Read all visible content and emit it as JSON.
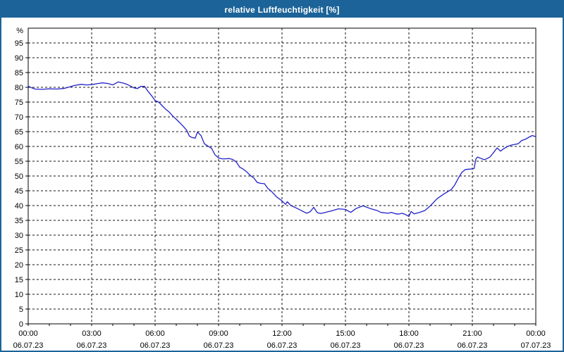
{
  "window": {
    "title": "relative Luftfeuchtigkeit [%]"
  },
  "colors": {
    "titlebar_bg": "#1b6398",
    "window_border": "#1b6398",
    "title_text": "#ffffff",
    "line": "#2121c8",
    "grid": "#111111",
    "axis": "#000000",
    "plot_bg": "#ffffff",
    "label": "#000000"
  },
  "chart_data": {
    "type": "line",
    "title": "relative Luftfeuchtigkeit [%]",
    "ylabel_unit": "%",
    "xlim_hours": [
      0,
      24
    ],
    "ylim": [
      0,
      100
    ],
    "grid": "dashed",
    "legend": "none",
    "y_ticks": [
      95,
      90,
      85,
      80,
      75,
      70,
      65,
      60,
      55,
      50,
      45,
      40,
      35,
      30,
      25,
      20,
      15,
      10,
      5,
      0
    ],
    "x_ticks": [
      {
        "time": "00:00",
        "date": "06.07.23",
        "hour": 0
      },
      {
        "time": "03:00",
        "date": "06.07.23",
        "hour": 3
      },
      {
        "time": "06:00",
        "date": "06.07.23",
        "hour": 6
      },
      {
        "time": "09:00",
        "date": "06.07.23",
        "hour": 9
      },
      {
        "time": "12:00",
        "date": "06.07.23",
        "hour": 12
      },
      {
        "time": "15:00",
        "date": "06.07.23",
        "hour": 15
      },
      {
        "time": "18:00",
        "date": "06.07.23",
        "hour": 18
      },
      {
        "time": "21:00",
        "date": "06.07.23",
        "hour": 21
      },
      {
        "time": "00:00",
        "date": "07.07.23",
        "hour": 24
      }
    ],
    "minor_x_tick_every_hours": 1,
    "series": [
      {
        "name": "relative Luftfeuchtigkeit",
        "unit": "%",
        "points": [
          [
            0.0,
            80.4
          ],
          [
            0.17,
            79.8
          ],
          [
            0.33,
            79.4
          ],
          [
            0.67,
            79.3
          ],
          [
            1.0,
            79.5
          ],
          [
            1.33,
            79.4
          ],
          [
            1.67,
            79.6
          ],
          [
            1.9,
            80.0
          ],
          [
            2.17,
            80.6
          ],
          [
            2.5,
            81.0
          ],
          [
            2.75,
            80.8
          ],
          [
            3.0,
            80.9
          ],
          [
            3.33,
            81.3
          ],
          [
            3.5,
            81.5
          ],
          [
            3.75,
            81.3
          ],
          [
            4.0,
            80.8
          ],
          [
            4.25,
            81.8
          ],
          [
            4.5,
            81.4
          ],
          [
            4.67,
            81.0
          ],
          [
            5.0,
            79.8
          ],
          [
            5.17,
            79.6
          ],
          [
            5.33,
            80.3
          ],
          [
            5.5,
            80.3
          ],
          [
            5.67,
            78.6
          ],
          [
            5.83,
            77.2
          ],
          [
            6.0,
            75.5
          ],
          [
            6.17,
            75.0
          ],
          [
            6.33,
            73.8
          ],
          [
            6.5,
            72.6
          ],
          [
            6.67,
            71.6
          ],
          [
            6.83,
            70.3
          ],
          [
            7.0,
            69.2
          ],
          [
            7.17,
            68.0
          ],
          [
            7.33,
            66.8
          ],
          [
            7.5,
            65.4
          ],
          [
            7.62,
            63.5
          ],
          [
            7.75,
            63.0
          ],
          [
            7.9,
            62.8
          ],
          [
            8.0,
            64.8
          ],
          [
            8.1,
            64.2
          ],
          [
            8.17,
            63.7
          ],
          [
            8.33,
            60.9
          ],
          [
            8.5,
            60.1
          ],
          [
            8.67,
            59.4
          ],
          [
            8.83,
            57.2
          ],
          [
            9.0,
            56.1
          ],
          [
            9.17,
            55.8
          ],
          [
            9.33,
            55.8
          ],
          [
            9.5,
            55.9
          ],
          [
            9.67,
            55.6
          ],
          [
            9.83,
            54.8
          ],
          [
            10.0,
            53.0
          ],
          [
            10.17,
            52.3
          ],
          [
            10.33,
            51.4
          ],
          [
            10.5,
            50.2
          ],
          [
            10.67,
            49.3
          ],
          [
            10.83,
            47.8
          ],
          [
            11.0,
            47.5
          ],
          [
            11.17,
            47.4
          ],
          [
            11.33,
            45.8
          ],
          [
            11.5,
            44.8
          ],
          [
            11.75,
            42.9
          ],
          [
            12.0,
            41.6
          ],
          [
            12.17,
            40.4
          ],
          [
            12.25,
            41.3
          ],
          [
            12.42,
            40.0
          ],
          [
            12.58,
            39.5
          ],
          [
            12.75,
            38.9
          ],
          [
            13.0,
            38.0
          ],
          [
            13.17,
            37.4
          ],
          [
            13.33,
            37.9
          ],
          [
            13.5,
            39.4
          ],
          [
            13.67,
            37.6
          ],
          [
            13.83,
            37.3
          ],
          [
            14.0,
            37.6
          ],
          [
            14.17,
            37.9
          ],
          [
            14.33,
            38.2
          ],
          [
            14.67,
            38.9
          ],
          [
            15.0,
            38.7
          ],
          [
            15.25,
            37.7
          ],
          [
            15.5,
            39.0
          ],
          [
            15.83,
            39.9
          ],
          [
            16.17,
            39.0
          ],
          [
            16.5,
            38.3
          ],
          [
            16.67,
            37.7
          ],
          [
            17.0,
            37.4
          ],
          [
            17.17,
            37.7
          ],
          [
            17.33,
            37.3
          ],
          [
            17.5,
            37.1
          ],
          [
            17.67,
            37.4
          ],
          [
            17.83,
            37.0
          ],
          [
            18.0,
            36.3
          ],
          [
            18.1,
            38.0
          ],
          [
            18.25,
            37.2
          ],
          [
            18.5,
            37.7
          ],
          [
            18.75,
            38.3
          ],
          [
            19.0,
            39.8
          ],
          [
            19.33,
            42.3
          ],
          [
            19.67,
            44.0
          ],
          [
            20.0,
            45.4
          ],
          [
            20.17,
            47.0
          ],
          [
            20.33,
            49.2
          ],
          [
            20.5,
            51.2
          ],
          [
            20.67,
            52.2
          ],
          [
            20.83,
            52.3
          ],
          [
            21.0,
            52.4
          ],
          [
            21.08,
            52.5
          ],
          [
            21.17,
            55.8
          ],
          [
            21.25,
            56.4
          ],
          [
            21.42,
            55.9
          ],
          [
            21.58,
            55.5
          ],
          [
            21.83,
            56.4
          ],
          [
            22.0,
            57.9
          ],
          [
            22.17,
            59.5
          ],
          [
            22.33,
            58.4
          ],
          [
            22.5,
            59.3
          ],
          [
            22.67,
            60.0
          ],
          [
            22.83,
            60.4
          ],
          [
            23.0,
            60.7
          ],
          [
            23.17,
            60.9
          ],
          [
            23.33,
            62.0
          ],
          [
            23.5,
            62.4
          ],
          [
            23.67,
            63.1
          ],
          [
            23.83,
            63.7
          ],
          [
            24.0,
            63.3
          ]
        ]
      }
    ]
  }
}
